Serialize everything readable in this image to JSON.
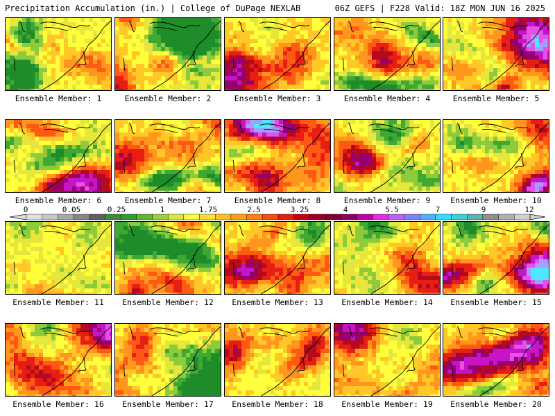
{
  "header": {
    "left": "Precipitation Accumulation (in.) | College of DuPage NEXLAB",
    "right": "06Z GEFS | F228 Valid: 18Z MON JUN 16 2025"
  },
  "panels": [
    {
      "label": "Ensemble Member: 1"
    },
    {
      "label": "Ensemble Member: 2"
    },
    {
      "label": "Ensemble Member: 3"
    },
    {
      "label": "Ensemble Member: 4"
    },
    {
      "label": "Ensemble Member: 5"
    },
    {
      "label": "Ensemble Member: 6"
    },
    {
      "label": "Ensemble Member: 7"
    },
    {
      "label": "Ensemble Member: 8"
    },
    {
      "label": "Ensemble Member: 9"
    },
    {
      "label": "Ensemble Member: 10"
    },
    {
      "label": "Ensemble Member: 11"
    },
    {
      "label": "Ensemble Member: 12"
    },
    {
      "label": "Ensemble Member: 13"
    },
    {
      "label": "Ensemble Member: 14"
    },
    {
      "label": "Ensemble Member: 15"
    },
    {
      "label": "Ensemble Member: 16"
    },
    {
      "label": "Ensemble Member: 17"
    },
    {
      "label": "Ensemble Member: 18"
    },
    {
      "label": "Ensemble Member: 19"
    },
    {
      "label": "Ensemble Member: 20"
    }
  ],
  "colorbar": {
    "tick_labels": [
      "0",
      "0.05",
      "0.25",
      "1",
      "1.75",
      "2.5",
      "3.25",
      "4",
      "5.5",
      "7",
      "9",
      "12"
    ],
    "colors": [
      "#e0e0e0",
      "#c8c8c8",
      "#a8a8a8",
      "#888888",
      "#606060",
      "#3c8a3c",
      "#2e9e2e",
      "#60b830",
      "#9ad040",
      "#d8e840",
      "#ffff40",
      "#ffe030",
      "#ffc020",
      "#ffa010",
      "#ff8010",
      "#f05010",
      "#e02010",
      "#c00010",
      "#a00020",
      "#800030",
      "#900060",
      "#c000a0",
      "#e030e0",
      "#c060f0",
      "#8080ff",
      "#50b0ff",
      "#30e0ff",
      "#40d0d0",
      "#60b0b0",
      "#909090",
      "#b0b0b0",
      "#d0d0d0"
    ]
  }
}
